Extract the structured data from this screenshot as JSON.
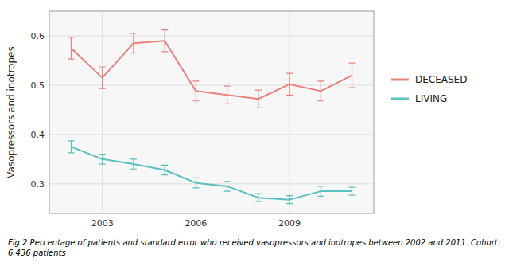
{
  "chart_data": {
    "type": "line",
    "ylabel": "Vasopressors and inotropes",
    "caption": "Fig 2  Percentage of patients and standard error who received vasopressors and inotropes between 2002 and 2011. Cohort: 6 436 patients",
    "x": [
      2002,
      2003,
      2004,
      2005,
      2006,
      2007,
      2008,
      2009,
      2010,
      2011
    ],
    "series": [
      {
        "name": "DECEASED",
        "color": "#E8837F",
        "values": [
          0.575,
          0.515,
          0.585,
          0.59,
          0.488,
          0.48,
          0.472,
          0.502,
          0.488,
          0.52
        ],
        "errors": [
          0.022,
          0.022,
          0.02,
          0.022,
          0.02,
          0.018,
          0.018,
          0.022,
          0.02,
          0.025
        ]
      },
      {
        "name": "LIVING",
        "color": "#5BBFBF",
        "values": [
          0.375,
          0.35,
          0.34,
          0.328,
          0.302,
          0.295,
          0.272,
          0.268,
          0.285,
          0.285
        ],
        "errors": [
          0.012,
          0.01,
          0.01,
          0.01,
          0.01,
          0.01,
          0.008,
          0.008,
          0.01,
          0.008
        ]
      }
    ],
    "xlim": [
      2001.3,
      2011.7
    ],
    "xticks": [
      2003,
      2006,
      2009
    ],
    "ylim": [
      0.24,
      0.65
    ],
    "yticks": [
      0.3,
      0.4,
      0.5,
      0.6
    ],
    "grid": true,
    "legend": "right"
  }
}
